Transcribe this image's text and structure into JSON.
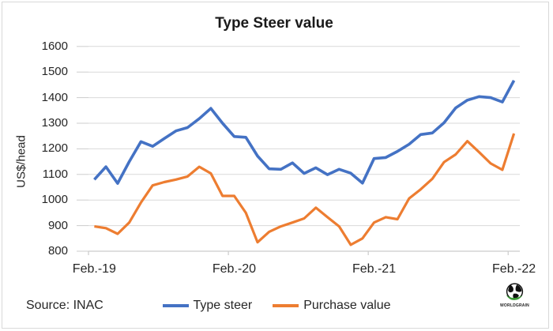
{
  "title": "Type Steer value",
  "y_axis": {
    "title": "US$/head",
    "ticks": [
      "1600",
      "1500",
      "1400",
      "1300",
      "1200",
      "1100",
      "1000",
      "900",
      "800"
    ]
  },
  "x_axis": {
    "tick_labels": [
      "Feb.-19",
      "Feb.-20",
      "Feb.-21",
      "Feb.-22"
    ]
  },
  "source_note": "Source: INAC",
  "legend": {
    "items": [
      {
        "label": "Type steer",
        "color": "#4472C4"
      },
      {
        "label": "Purchase value",
        "color": "#ED7D31"
      }
    ]
  },
  "logo": {
    "name": "globe-logo",
    "text": "WORLDGRAIN",
    "green": "#3a9a35"
  },
  "colors": {
    "type_steer": "#4472C4",
    "purchase_value": "#ED7D31",
    "gridline": "#d9d9d9",
    "axis": "#cccccc",
    "text": "#262626"
  },
  "chart_data": {
    "type": "line",
    "x": [
      "Feb-19",
      "Mar-19",
      "Apr-19",
      "May-19",
      "Jun-19",
      "Jul-19",
      "Aug-19",
      "Sep-19",
      "Oct-19",
      "Nov-19",
      "Dec-19",
      "Jan-20",
      "Feb-20",
      "Mar-20",
      "Apr-20",
      "May-20",
      "Jun-20",
      "Jul-20",
      "Aug-20",
      "Sep-20",
      "Oct-20",
      "Nov-20",
      "Dec-20",
      "Jan-21",
      "Feb-21",
      "Mar-21",
      "Apr-21",
      "May-21",
      "Jun-21",
      "Jul-21",
      "Aug-21",
      "Sep-21",
      "Oct-21",
      "Nov-21",
      "Dec-21",
      "Jan-22",
      "Feb-22"
    ],
    "series": [
      {
        "name": "Type steer",
        "color": "#4472C4",
        "values": [
          1080,
          1130,
          1065,
          1150,
          1228,
          1210,
          1240,
          1270,
          1283,
          1318,
          1358,
          1300,
          1248,
          1245,
          1172,
          1122,
          1120,
          1145,
          1104,
          1126,
          1099,
          1120,
          1105,
          1066,
          1162,
          1166,
          1190,
          1218,
          1256,
          1262,
          1302,
          1360,
          1390,
          1404,
          1400,
          1383,
          1467
        ]
      },
      {
        "name": "Purchase value",
        "color": "#ED7D31",
        "values": [
          897,
          890,
          868,
          912,
          990,
          1057,
          1070,
          1080,
          1092,
          1130,
          1104,
          1016,
          1016,
          950,
          835,
          876,
          897,
          912,
          928,
          970,
          933,
          897,
          825,
          850,
          912,
          933,
          925,
          1006,
          1042,
          1083,
          1148,
          1178,
          1230,
          1187,
          1143,
          1118,
          1260
        ]
      }
    ],
    "ylim": [
      800,
      1600
    ],
    "y_tick_step": 100,
    "grid": true,
    "legend_position": "bottom",
    "xlabel": "",
    "ylabel": "US$/head"
  }
}
